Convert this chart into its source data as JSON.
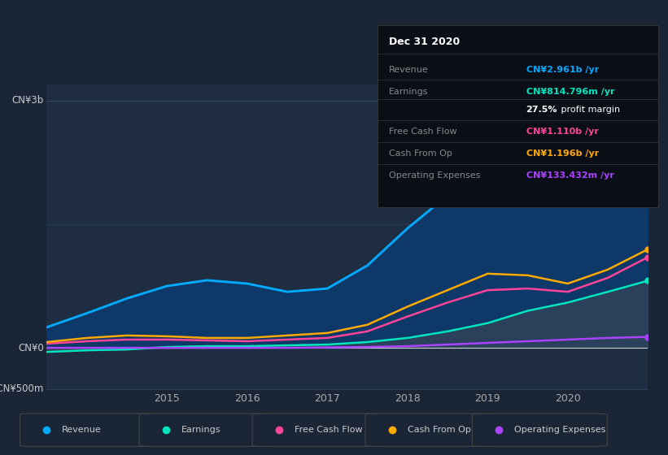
{
  "bg_color": "#1a2535",
  "plot_bg_color": "#1e2d42",
  "grid_color": "#2a3f5a",
  "x_years": [
    2013.5,
    2014.0,
    2014.5,
    2015.0,
    2015.5,
    2016.0,
    2016.5,
    2017.0,
    2017.5,
    2018.0,
    2018.5,
    2019.0,
    2019.5,
    2020.0,
    2020.5,
    2021.0
  ],
  "revenue": [
    0.25,
    0.42,
    0.6,
    0.75,
    0.82,
    0.78,
    0.68,
    0.72,
    1.0,
    1.45,
    1.85,
    2.2,
    2.45,
    2.55,
    2.75,
    2.961
  ],
  "earnings": [
    -0.05,
    -0.03,
    -0.02,
    0.01,
    0.02,
    0.02,
    0.03,
    0.04,
    0.07,
    0.12,
    0.2,
    0.3,
    0.45,
    0.55,
    0.68,
    0.815
  ],
  "free_cash_flow": [
    0.05,
    0.08,
    0.1,
    0.1,
    0.09,
    0.08,
    0.1,
    0.12,
    0.2,
    0.38,
    0.55,
    0.7,
    0.72,
    0.68,
    0.85,
    1.1
  ],
  "cash_from_op": [
    0.07,
    0.12,
    0.15,
    0.14,
    0.12,
    0.12,
    0.15,
    0.18,
    0.28,
    0.5,
    0.7,
    0.9,
    0.88,
    0.78,
    0.95,
    1.196
  ],
  "operating_expenses": [
    0.0,
    0.0,
    0.0,
    0.0,
    0.0,
    0.0,
    0.0,
    0.005,
    0.01,
    0.02,
    0.04,
    0.06,
    0.08,
    0.1,
    0.12,
    0.133
  ],
  "revenue_color": "#00aaff",
  "earnings_color": "#00e5c0",
  "free_cash_flow_color": "#ff4499",
  "cash_from_op_color": "#ffaa00",
  "operating_expenses_color": "#aa44ff",
  "revenue_fill_color": "#0a3a6e",
  "earnings_fill_color": "#3a4555",
  "ylim": [
    -0.5,
    3.2
  ],
  "xtick_years": [
    2015,
    2016,
    2017,
    2018,
    2019,
    2020
  ],
  "info_title": "Dec 31 2020",
  "info_rows": [
    {
      "label": "Revenue",
      "value": "CN¥2.961b /yr",
      "value_color": "#00aaff"
    },
    {
      "label": "Earnings",
      "value": "CN¥814.796m /yr",
      "value_color": "#00e5c0"
    },
    {
      "label": "",
      "value": "27.5% profit margin",
      "value_color": "#ffffff"
    },
    {
      "label": "Free Cash Flow",
      "value": "CN¥1.110b /yr",
      "value_color": "#ff4499"
    },
    {
      "label": "Cash From Op",
      "value": "CN¥1.196b /yr",
      "value_color": "#ffaa00"
    },
    {
      "label": "Operating Expenses",
      "value": "CN¥133.432m /yr",
      "value_color": "#aa44ff"
    }
  ],
  "legend_items": [
    {
      "label": "Revenue",
      "color": "#00aaff"
    },
    {
      "label": "Earnings",
      "color": "#00e5c0"
    },
    {
      "label": "Free Cash Flow",
      "color": "#ff4499"
    },
    {
      "label": "Cash From Op",
      "color": "#ffaa00"
    },
    {
      "label": "Operating Expenses",
      "color": "#aa44ff"
    }
  ]
}
